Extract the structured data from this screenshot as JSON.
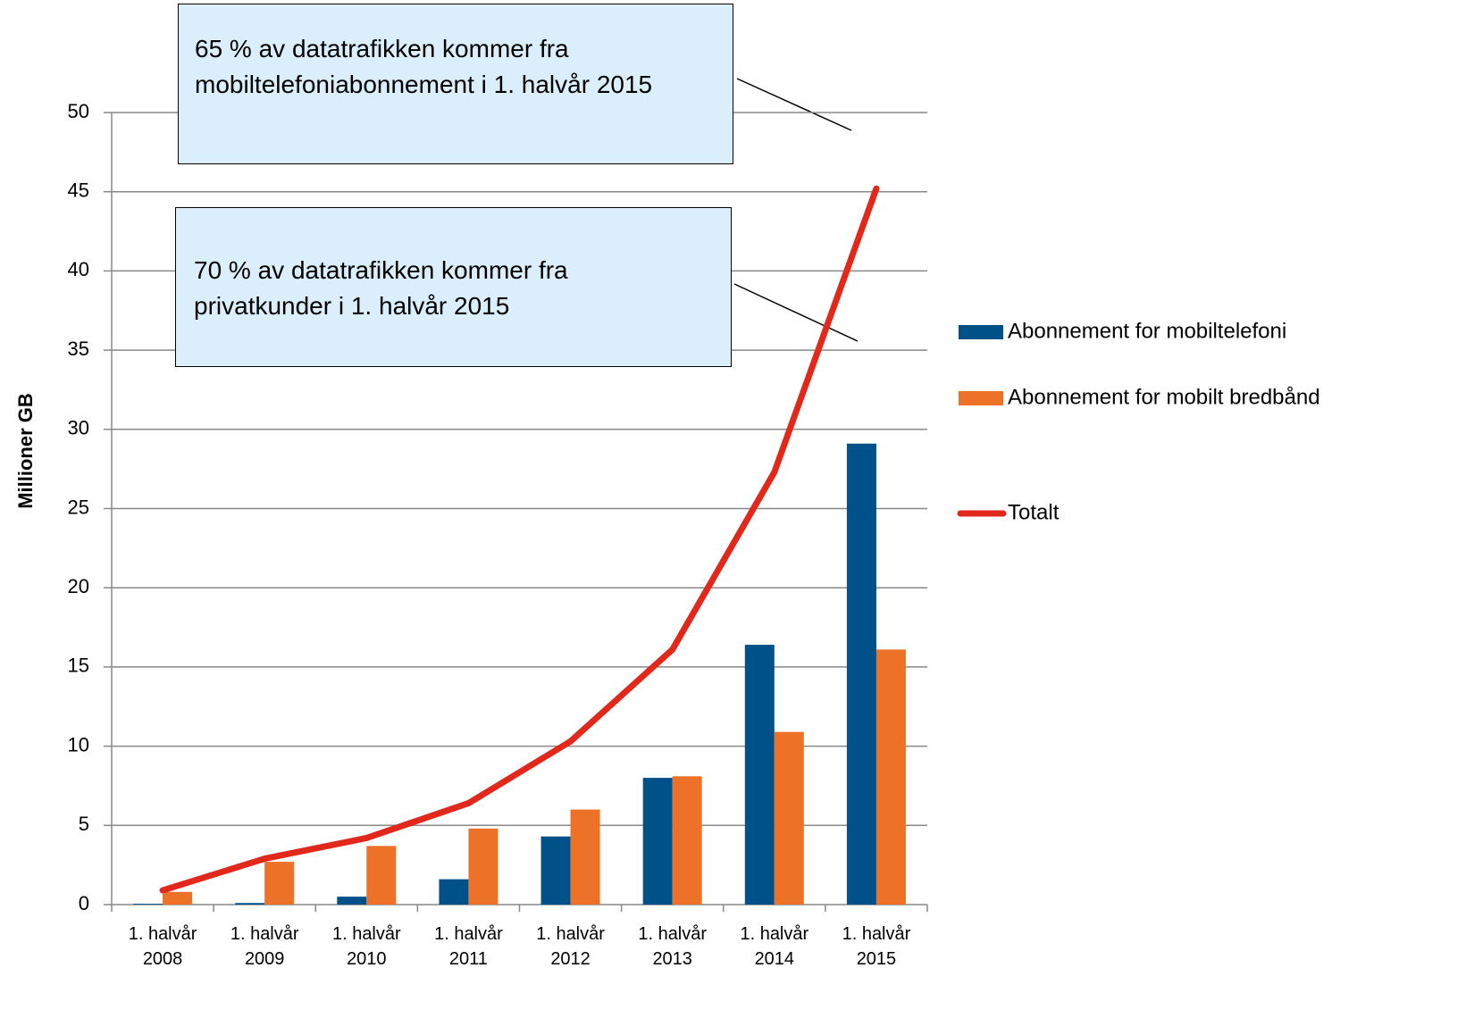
{
  "chart_data": {
    "type": "bar",
    "ylabel": "Millioner GB",
    "categories": [
      "1. halvår 2008",
      "1. halvår 2009",
      "1. halvår 2010",
      "1. halvår 2011",
      "1. halvår 2012",
      "1. halvår 2013",
      "1. halvår 2014",
      "1. halvår 2015"
    ],
    "series": [
      {
        "name": "Abonnement for mobiltelefoni",
        "color": "#00508a",
        "type": "bar",
        "values": [
          0.05,
          0.1,
          0.5,
          1.6,
          4.3,
          8.0,
          16.4,
          29.1
        ]
      },
      {
        "name": "Abonnement for mobilt bredbånd",
        "color": "#ee7128",
        "type": "bar",
        "values": [
          0.8,
          2.7,
          3.7,
          4.8,
          6.0,
          8.1,
          10.9,
          16.1
        ]
      },
      {
        "name": "Totalt",
        "color": "#e2281b",
        "type": "line",
        "values": [
          0.9,
          2.9,
          4.2,
          6.4,
          10.3,
          16.1,
          27.3,
          45.2
        ]
      }
    ],
    "ylim": [
      0,
      50
    ],
    "yticks": [
      0,
      5,
      10,
      15,
      20,
      25,
      30,
      35,
      40,
      45,
      50
    ],
    "grid": true,
    "legend": "right",
    "annotations": [
      "65 % av datatrafikken kommer fra mobiltelefoniabonnement i 1. halvår 2015",
      "70 % av datatrafikken kommer fra privatkunder i 1. halvår 2015"
    ]
  }
}
